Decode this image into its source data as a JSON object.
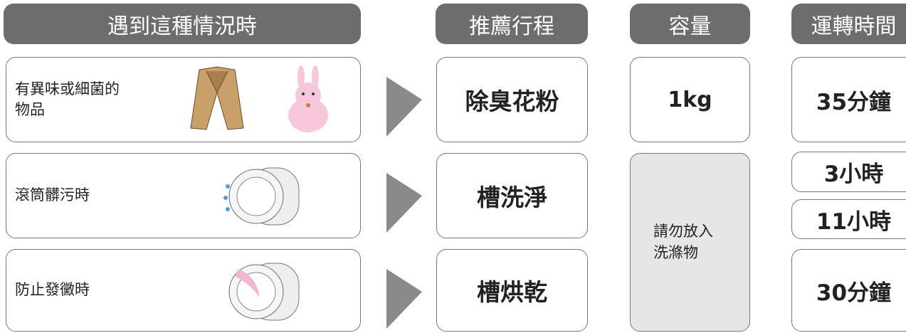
{
  "header": {
    "situation": "遇到這種情況時",
    "course": "推薦行程",
    "capacity": "容量",
    "time": "運轉時間"
  },
  "rows": [
    {
      "situation": [
        "有異味或細菌的",
        "物品"
      ],
      "course": "除臭花粉"
    },
    {
      "situation": [
        "滾筒髒污時"
      ],
      "course": "槽洗淨"
    },
    {
      "situation": [
        "防止發黴時"
      ],
      "course": "槽烘乾"
    }
  ],
  "capacity": {
    "first": "1kg",
    "note": [
      "請勿放入",
      "洗滌物"
    ]
  },
  "times": [
    "35分鐘",
    "3小時",
    "11小時",
    "30分鐘"
  ]
}
